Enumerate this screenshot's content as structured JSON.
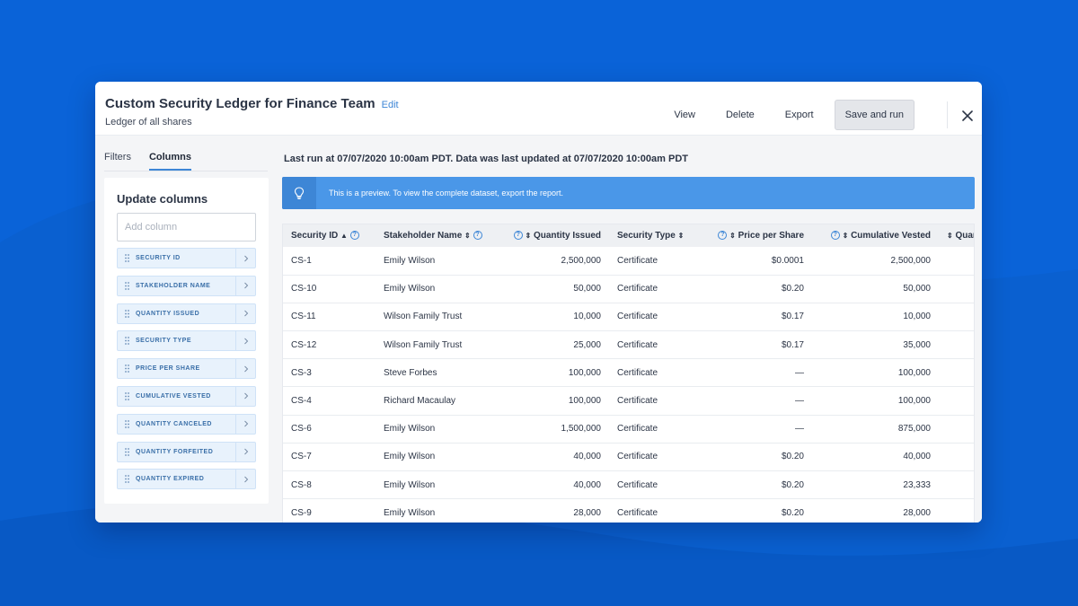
{
  "header": {
    "title": "Custom Security Ledger for Finance Team",
    "edit_label": "Edit",
    "subtitle": "Ledger of all shares",
    "actions": {
      "view": "View",
      "delete": "Delete",
      "export": "Export",
      "save_run": "Save and run"
    }
  },
  "left_panel": {
    "tabs": [
      {
        "label": "Filters",
        "active": false
      },
      {
        "label": "Columns",
        "active": true
      }
    ],
    "card_title": "Update columns",
    "add_column_placeholder": "Add column",
    "columns": [
      "SECURITY ID",
      "STAKEHOLDER NAME",
      "QUANTITY ISSUED",
      "SECURITY TYPE",
      "PRICE PER SHARE",
      "CUMULATIVE VESTED",
      "QUANTITY CANCELED",
      "QUANTITY FORFEITED",
      "QUANTITY EXPIRED"
    ]
  },
  "main": {
    "run_info": "Last run at 07/07/2020 10:00am PDT. Data was last updated at 07/07/2020 10:00am PDT",
    "banner": "This is a preview. To view the complete dataset, export the report."
  },
  "table": {
    "headers": {
      "security_id": "Security ID",
      "stakeholder": "Stakeholder Name",
      "qty_issued": "Quantity Issued",
      "security_type": "Security Type",
      "price": "Price per Share",
      "vested": "Cumulative Vested",
      "quant": "Quant"
    },
    "rows": [
      [
        "CS-1",
        "Emily Wilson",
        "2,500,000",
        "Certificate",
        "$0.0001",
        "2,500,000"
      ],
      [
        "CS-10",
        "Emily Wilson",
        "50,000",
        "Certificate",
        "$0.20",
        "50,000"
      ],
      [
        "CS-11",
        "Wilson Family Trust",
        "10,000",
        "Certificate",
        "$0.17",
        "10,000"
      ],
      [
        "CS-12",
        "Wilson Family Trust",
        "25,000",
        "Certificate",
        "$0.17",
        "35,000"
      ],
      [
        "CS-3",
        "Steve Forbes",
        "100,000",
        "Certificate",
        "—",
        "100,000"
      ],
      [
        "CS-4",
        "Richard Macaulay",
        "100,000",
        "Certificate",
        "—",
        "100,000"
      ],
      [
        "CS-6",
        "Emily Wilson",
        "1,500,000",
        "Certificate",
        "—",
        "875,000"
      ],
      [
        "CS-7",
        "Emily Wilson",
        "40,000",
        "Certificate",
        "$0.20",
        "40,000"
      ],
      [
        "CS-8",
        "Emily Wilson",
        "40,000",
        "Certificate",
        "$0.20",
        "23,333"
      ],
      [
        "CS-9",
        "Emily Wilson",
        "28,000",
        "Certificate",
        "$0.20",
        "28,000"
      ]
    ]
  },
  "icons": {
    "help": "question-circle-icon",
    "sort": "sort-icon",
    "grip": "drag-handle-icon",
    "chevron": "chevron-right-icon",
    "bulb": "lightbulb-icon",
    "close": "close-icon"
  },
  "colors": {
    "background": "#0a63d8",
    "accent": "#3d86d6",
    "banner": "#4a97e8"
  }
}
